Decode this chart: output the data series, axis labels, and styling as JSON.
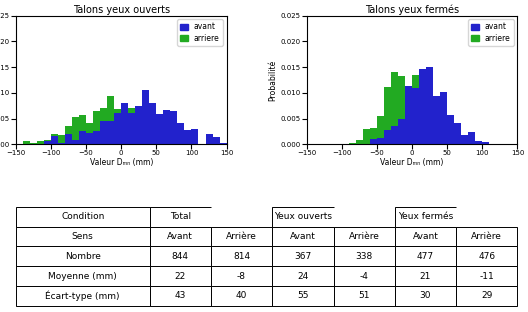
{
  "title_open": "Talons yeux ouverts",
  "title_closed": "Talons yeux fermés",
  "xlabel": "Valeur Dₘₙ (mm)",
  "ylabel": "Probabilité",
  "xlim": [
    -150,
    150
  ],
  "ylim": [
    0,
    0.025
  ],
  "yticks": [
    0.0,
    0.005,
    0.01,
    0.015,
    0.02,
    0.025
  ],
  "xticks": [
    -150,
    -100,
    -50,
    0,
    50,
    100,
    150
  ],
  "color_avant": "#2222cc",
  "color_arriere": "#22aa22",
  "bin_width": 10,
  "open_avant_mean": 24,
  "open_avant_std": 55,
  "open_avant_n": 367,
  "open_arriere_mean": -4,
  "open_arriere_std": 51,
  "open_arriere_n": 338,
  "closed_avant_mean": 21,
  "closed_avant_std": 30,
  "closed_avant_n": 477,
  "closed_arriere_mean": -11,
  "closed_arriere_std": 29,
  "closed_arriere_n": 476,
  "seed": 1234,
  "table_col_widths": [
    0.24,
    0.11,
    0.11,
    0.11,
    0.11,
    0.11,
    0.11
  ]
}
